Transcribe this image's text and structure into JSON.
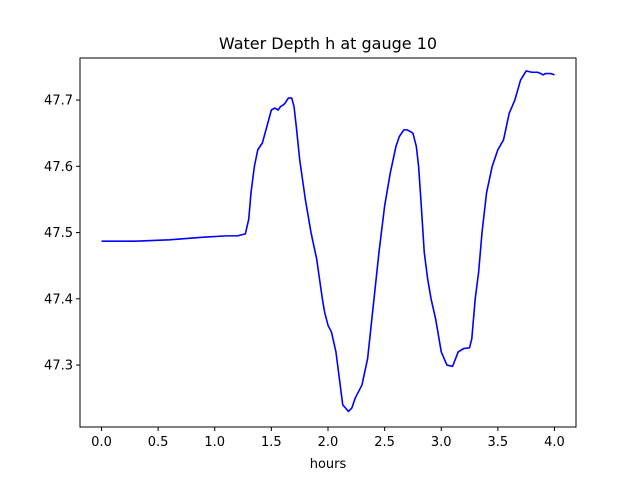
{
  "chart_data": {
    "type": "line",
    "title": "Water Depth h at gauge 10",
    "xlabel": "hours",
    "ylabel": "",
    "xlim": [
      -0.19,
      4.19
    ],
    "ylim": [
      47.2065,
      47.7635
    ],
    "xticks": [
      0.0,
      0.5,
      1.0,
      1.5,
      2.0,
      2.5,
      3.0,
      3.5,
      4.0
    ],
    "xtick_labels": [
      "0.0",
      "0.5",
      "1.0",
      "1.5",
      "2.0",
      "2.5",
      "3.0",
      "3.5",
      "4.0"
    ],
    "yticks": [
      47.3,
      47.4,
      47.5,
      47.6,
      47.7
    ],
    "ytick_labels": [
      "47.3",
      "47.4",
      "47.5",
      "47.6",
      "47.7"
    ],
    "grid": false,
    "series": [
      {
        "name": "",
        "color": "#0000ff",
        "x": [
          0.0,
          0.3,
          0.6,
          0.9,
          1.1,
          1.2,
          1.27,
          1.3,
          1.32,
          1.35,
          1.38,
          1.42,
          1.46,
          1.5,
          1.53,
          1.56,
          1.58,
          1.6,
          1.62,
          1.65,
          1.68,
          1.7,
          1.72,
          1.75,
          1.8,
          1.85,
          1.9,
          1.95,
          1.97,
          2.0,
          2.03,
          2.07,
          2.1,
          2.13,
          2.16,
          2.18,
          2.21,
          2.24,
          2.27,
          2.3,
          2.35,
          2.4,
          2.45,
          2.5,
          2.55,
          2.6,
          2.63,
          2.67,
          2.7,
          2.73,
          2.75,
          2.78,
          2.8,
          2.82,
          2.85,
          2.88,
          2.91,
          2.95,
          3.0,
          3.05,
          3.1,
          3.15,
          3.2,
          3.25,
          3.27,
          3.28,
          3.3,
          3.33,
          3.36,
          3.4,
          3.45,
          3.5,
          3.55,
          3.6,
          3.65,
          3.7,
          3.75,
          3.8,
          3.85,
          3.88,
          3.9,
          3.92,
          3.95,
          3.97,
          4.0
        ],
        "y": [
          47.487,
          47.487,
          47.489,
          47.493,
          47.495,
          47.495,
          47.498,
          47.52,
          47.56,
          47.6,
          47.625,
          47.635,
          47.66,
          47.685,
          47.688,
          47.685,
          47.69,
          47.692,
          47.695,
          47.703,
          47.703,
          47.69,
          47.66,
          47.61,
          47.55,
          47.5,
          47.46,
          47.4,
          47.38,
          47.36,
          47.35,
          47.32,
          47.28,
          47.24,
          47.234,
          47.23,
          47.235,
          47.25,
          47.26,
          47.27,
          47.31,
          47.39,
          47.47,
          47.54,
          47.59,
          47.63,
          47.645,
          47.655,
          47.655,
          47.652,
          47.65,
          47.63,
          47.6,
          47.55,
          47.47,
          47.43,
          47.4,
          47.37,
          47.32,
          47.3,
          47.298,
          47.32,
          47.325,
          47.326,
          47.34,
          47.36,
          47.4,
          47.44,
          47.5,
          47.56,
          47.6,
          47.625,
          47.64,
          47.68,
          47.7,
          47.73,
          47.744,
          47.742,
          47.742,
          47.74,
          47.738,
          47.74,
          47.74,
          47.74,
          47.738
        ]
      }
    ]
  }
}
